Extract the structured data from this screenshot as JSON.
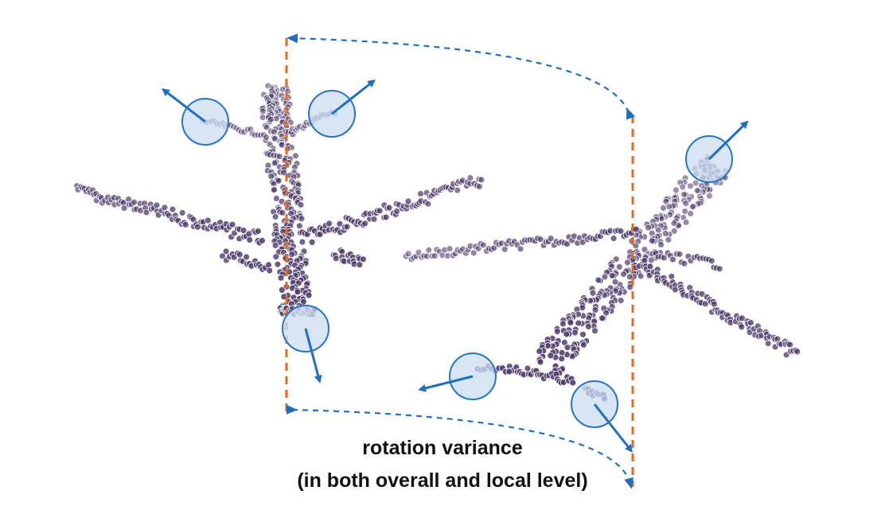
{
  "caption": {
    "line1": "rotation variance",
    "line2": "(in both overall and local level)"
  },
  "colors": {
    "points": "#4d3b6b",
    "guide_line": "#e36a23",
    "arrow": "#1f6fc0",
    "circle_fill": "#c9dcf2",
    "circle_stroke": "#2a74c4"
  },
  "icons": {
    "local_normal": "arrow-icon",
    "local_patch": "circle-highlight"
  }
}
